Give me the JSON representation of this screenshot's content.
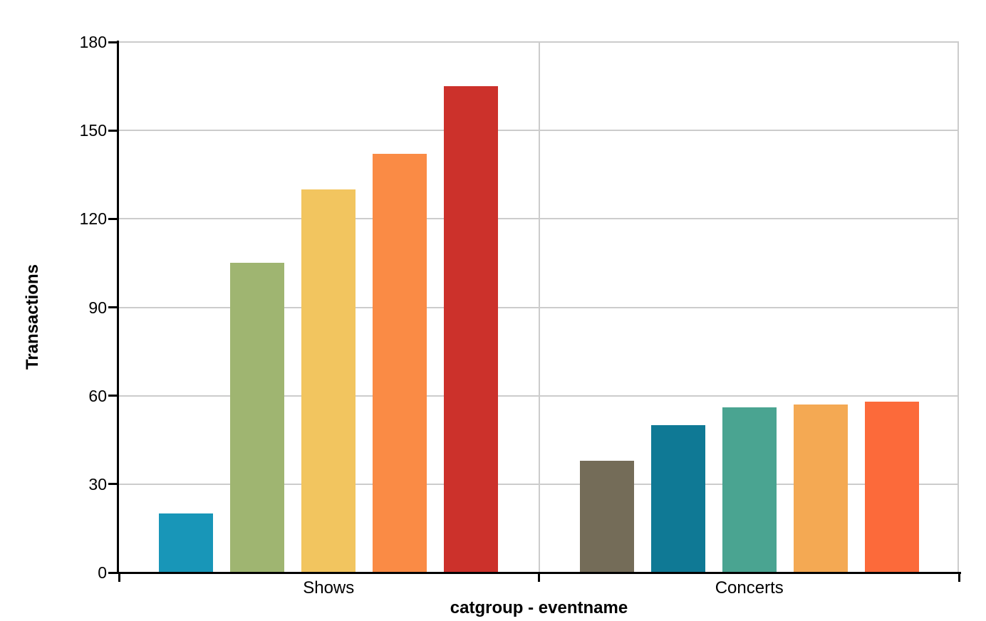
{
  "chart_data": {
    "type": "bar",
    "title": "",
    "xlabel": "catgroup - eventname",
    "ylabel": "Transactions",
    "ylim": [
      0,
      180
    ],
    "yticks": [
      0,
      30,
      60,
      90,
      120,
      150,
      180
    ],
    "grid": true,
    "legend": "none",
    "categories": [
      "Shows",
      "Concerts"
    ],
    "groups": [
      {
        "category": "Shows",
        "bars": [
          {
            "value": 20,
            "color": "#1896b8"
          },
          {
            "value": 105,
            "color": "#9fb571"
          },
          {
            "value": 130,
            "color": "#f2c55f"
          },
          {
            "value": 142,
            "color": "#fa8b45"
          },
          {
            "value": 165,
            "color": "#cc312b"
          }
        ]
      },
      {
        "category": "Concerts",
        "bars": [
          {
            "value": 38,
            "color": "#746c58"
          },
          {
            "value": 50,
            "color": "#0f7995"
          },
          {
            "value": 56,
            "color": "#4aa491"
          },
          {
            "value": 57,
            "color": "#f4a953"
          },
          {
            "value": 58,
            "color": "#fc6a3a"
          }
        ]
      }
    ],
    "colors": {
      "axis": "#000000",
      "grid": "#cccccc",
      "divider": "#cccccc",
      "background": "#ffffff"
    }
  }
}
